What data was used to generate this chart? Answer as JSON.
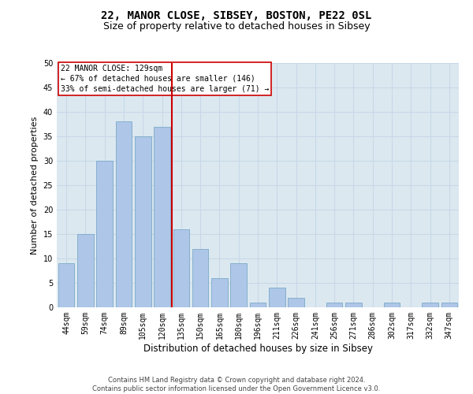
{
  "title": "22, MANOR CLOSE, SIBSEY, BOSTON, PE22 0SL",
  "subtitle": "Size of property relative to detached houses in Sibsey",
  "xlabel": "Distribution of detached houses by size in Sibsey",
  "ylabel": "Number of detached properties",
  "categories": [
    "44sqm",
    "59sqm",
    "74sqm",
    "89sqm",
    "105sqm",
    "120sqm",
    "135sqm",
    "150sqm",
    "165sqm",
    "180sqm",
    "196sqm",
    "211sqm",
    "226sqm",
    "241sqm",
    "256sqm",
    "271sqm",
    "286sqm",
    "302sqm",
    "317sqm",
    "332sqm",
    "347sqm"
  ],
  "values": [
    9,
    15,
    30,
    38,
    35,
    37,
    16,
    12,
    6,
    9,
    1,
    4,
    2,
    0,
    1,
    1,
    0,
    1,
    0,
    1,
    1
  ],
  "bar_color": "#aec6e8",
  "bar_edge_color": "#7aaac8",
  "red_line_x": 5.5,
  "annotation_line1": "22 MANOR CLOSE: 129sqm",
  "annotation_line2": "← 67% of detached houses are smaller (146)",
  "annotation_line3": "33% of semi-detached houses are larger (71) →",
  "annotation_box_color": "#ffffff",
  "annotation_box_edgecolor": "#cc0000",
  "red_line_color": "#cc0000",
  "ylim": [
    0,
    50
  ],
  "yticks": [
    0,
    5,
    10,
    15,
    20,
    25,
    30,
    35,
    40,
    45,
    50
  ],
  "grid_color": "#c8d8e8",
  "background_color": "#dce8f0",
  "footer_line1": "Contains HM Land Registry data © Crown copyright and database right 2024.",
  "footer_line2": "Contains public sector information licensed under the Open Government Licence v3.0.",
  "title_fontsize": 10,
  "subtitle_fontsize": 9,
  "xlabel_fontsize": 8.5,
  "ylabel_fontsize": 8,
  "tick_fontsize": 7,
  "footer_fontsize": 6,
  "annotation_fontsize": 7
}
